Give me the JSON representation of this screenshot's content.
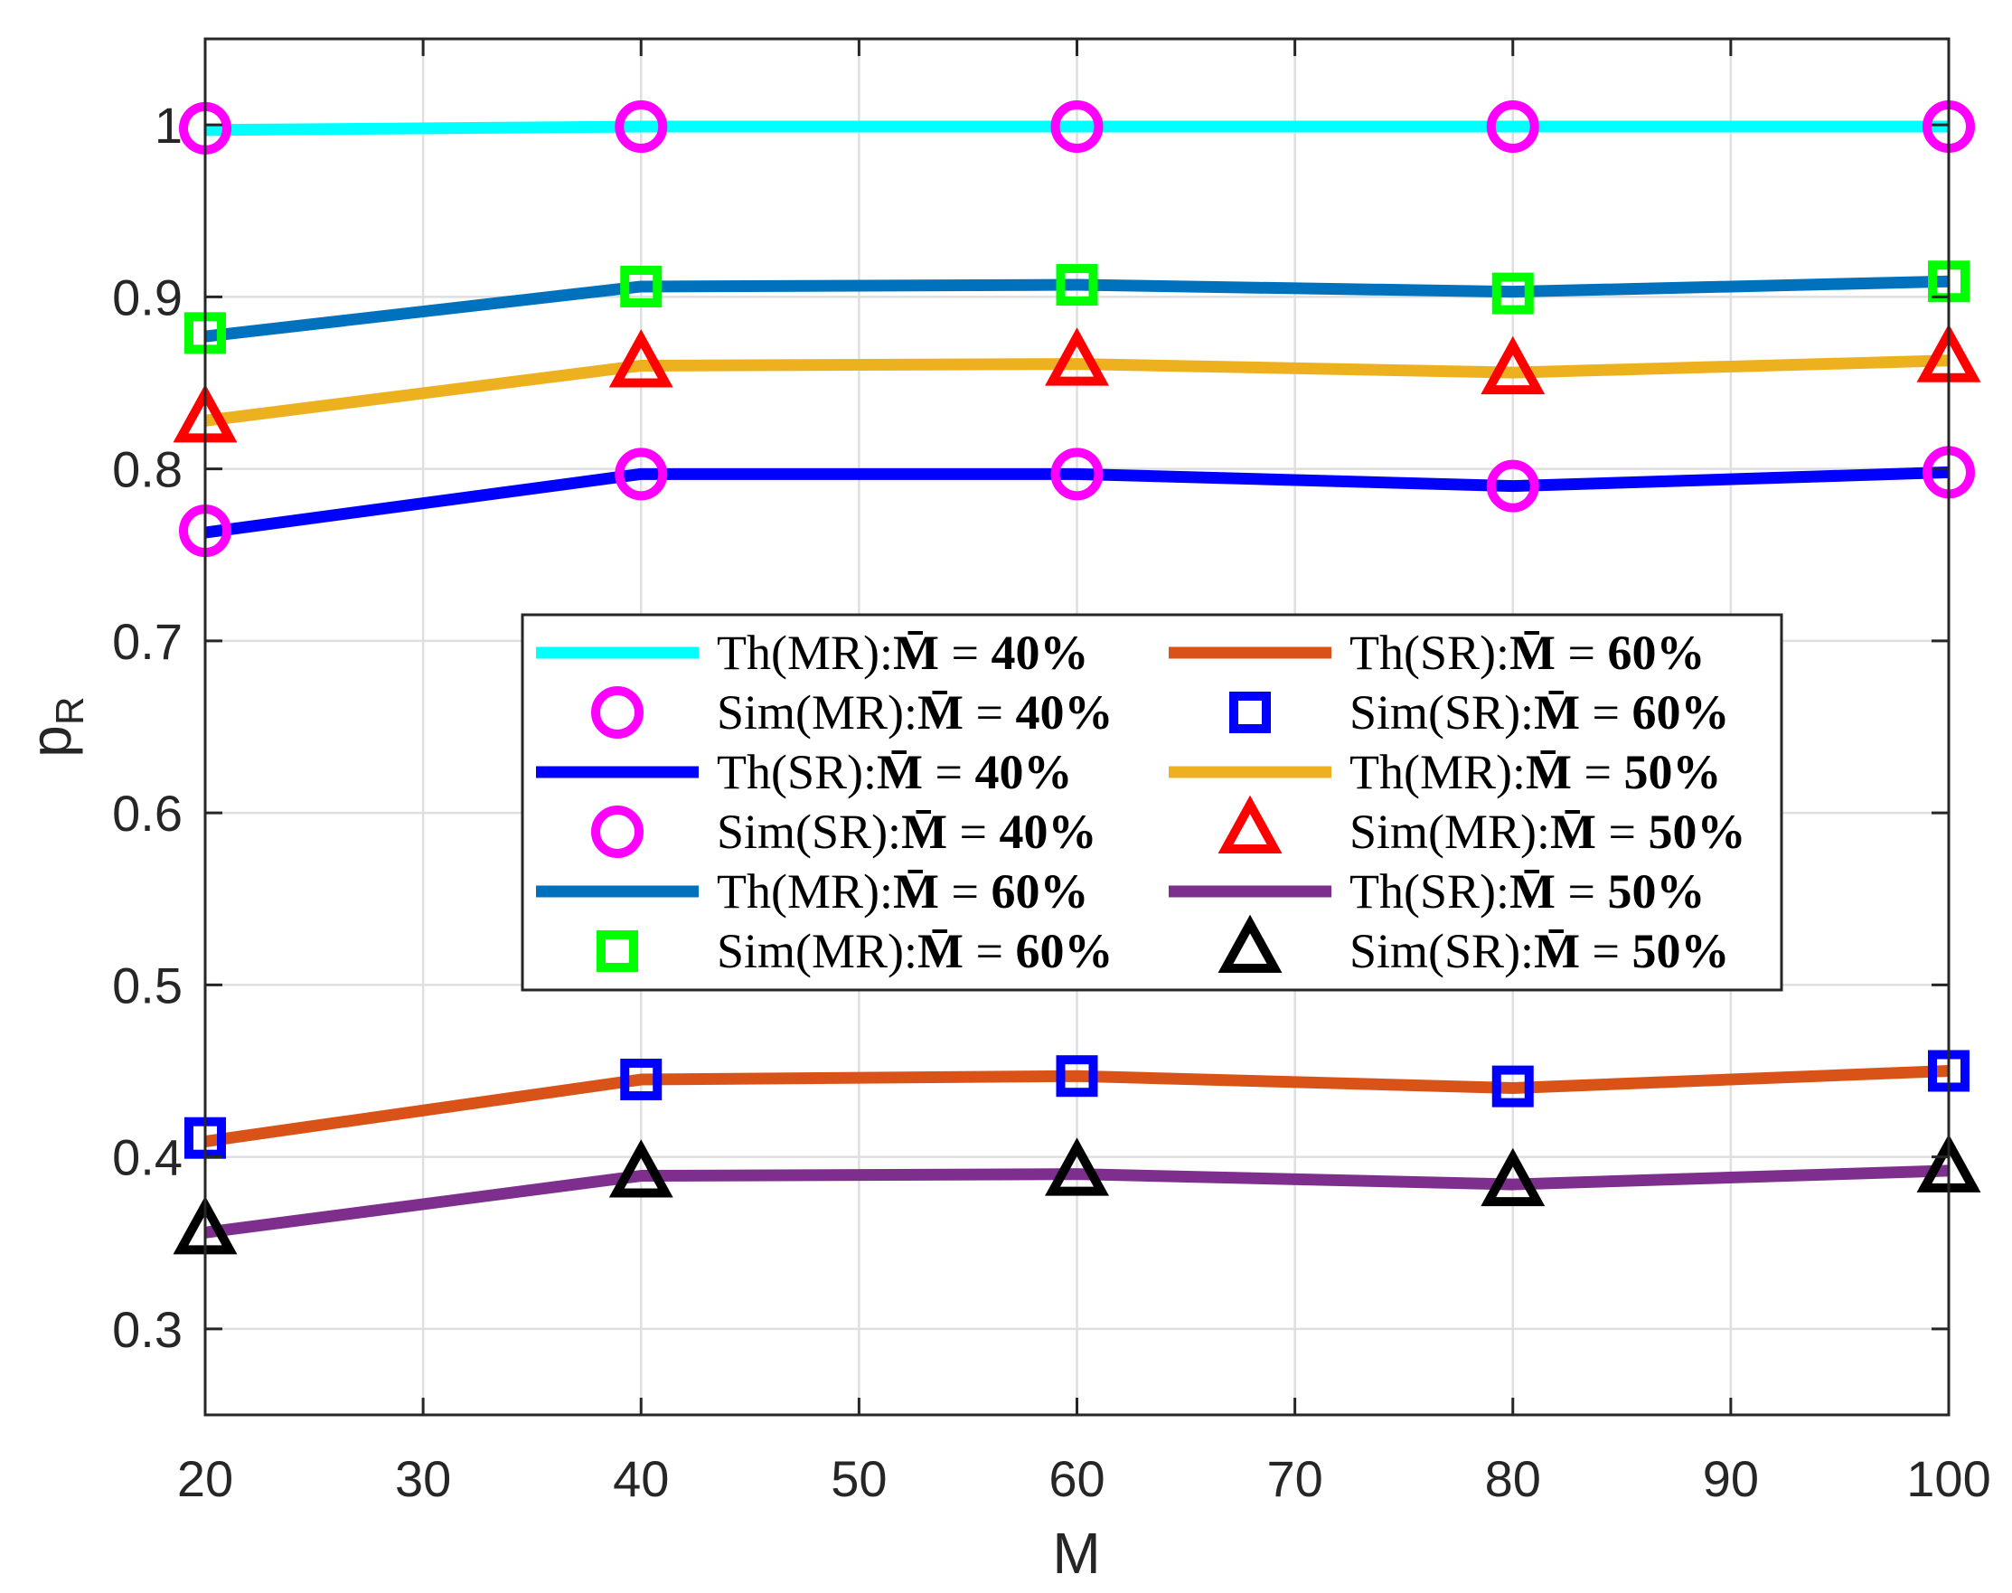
{
  "chart_data": {
    "type": "line",
    "title": "",
    "xlabel": "M",
    "ylabel_base": "p",
    "ylabel_sub": "R",
    "xlim": [
      20,
      100
    ],
    "ylim": [
      0.25,
      1.05
    ],
    "xticks": [
      20,
      30,
      40,
      50,
      60,
      70,
      80,
      90,
      100
    ],
    "xtick_labels": [
      "20",
      "30",
      "40",
      "50",
      "60",
      "70",
      "80",
      "90",
      "100"
    ],
    "yticks": [
      0.3,
      0.4,
      0.5,
      0.6,
      0.7,
      0.8,
      0.9,
      1.0
    ],
    "ytick_labels": [
      "0.3",
      "0.4",
      "0.5",
      "0.6",
      "0.7",
      "0.8",
      "0.9",
      "1"
    ],
    "grid": true,
    "legend_position": "center",
    "x": [
      20,
      40,
      60,
      80,
      100
    ],
    "series": [
      {
        "name": "Th(MR):M̄ = 40%",
        "prefix": "Th(MR):",
        "value": "40%",
        "kind": "line",
        "color": "#00FFFF",
        "values": [
          0.997,
          0.999,
          0.999,
          0.999,
          0.999
        ]
      },
      {
        "name": "Sim(MR):M̄ = 40%",
        "prefix": "Sim(MR):",
        "value": "40%",
        "kind": "marker",
        "marker": "circle",
        "color": "#FF00FF",
        "values": [
          0.998,
          0.999,
          0.999,
          0.999,
          0.999
        ]
      },
      {
        "name": "Th(SR):M̄ = 40%",
        "prefix": "Th(SR):",
        "value": "40%",
        "kind": "line",
        "color": "#0000FF",
        "values": [
          0.763,
          0.797,
          0.797,
          0.79,
          0.798
        ]
      },
      {
        "name": "Sim(SR):M̄ = 40%",
        "prefix": "Sim(SR):",
        "value": "40%",
        "kind": "marker",
        "marker": "circle",
        "color": "#FF00FF",
        "values": [
          0.764,
          0.797,
          0.797,
          0.79,
          0.798
        ]
      },
      {
        "name": "Th(MR):M̄ = 60%",
        "prefix": "Th(MR):",
        "value": "60%",
        "kind": "line",
        "color": "#0072BD",
        "values": [
          0.877,
          0.906,
          0.907,
          0.903,
          0.909
        ]
      },
      {
        "name": "Sim(MR):M̄ = 60%",
        "prefix": "Sim(MR):",
        "value": "60%",
        "kind": "marker",
        "marker": "square",
        "color": "#00FF00",
        "values": [
          0.879,
          0.906,
          0.907,
          0.902,
          0.909
        ]
      },
      {
        "name": "Th(SR):M̄ = 60%",
        "prefix": "Th(SR):",
        "value": "60%",
        "kind": "line",
        "color": "#D95319",
        "values": [
          0.409,
          0.445,
          0.447,
          0.44,
          0.45
        ]
      },
      {
        "name": "Sim(SR):M̄ = 60%",
        "prefix": "Sim(SR):",
        "value": "60%",
        "kind": "marker",
        "marker": "square",
        "color": "#0000FF",
        "values": [
          0.411,
          0.445,
          0.447,
          0.441,
          0.45
        ]
      },
      {
        "name": "Th(MR):M̄ = 50%",
        "prefix": "Th(MR):",
        "value": "50%",
        "kind": "line",
        "color": "#EDB120",
        "values": [
          0.828,
          0.86,
          0.861,
          0.856,
          0.863
        ]
      },
      {
        "name": "Sim(MR):M̄ = 50%",
        "prefix": "Sim(MR):",
        "value": "50%",
        "kind": "marker",
        "marker": "triangle",
        "color": "#FF0000",
        "values": [
          0.828,
          0.86,
          0.861,
          0.856,
          0.863
        ]
      },
      {
        "name": "Th(SR):M̄ = 50%",
        "prefix": "Th(SR):",
        "value": "50%",
        "kind": "line",
        "color": "#7E2F8E",
        "values": [
          0.356,
          0.389,
          0.39,
          0.384,
          0.392
        ]
      },
      {
        "name": "Sim(SR):M̄ = 50%",
        "prefix": "Sim(SR):",
        "value": "50%",
        "kind": "marker",
        "marker": "triangle",
        "color": "#000000",
        "values": [
          0.356,
          0.389,
          0.39,
          0.384,
          0.392
        ]
      }
    ],
    "legend_order": [
      0,
      6,
      1,
      7,
      2,
      8,
      3,
      9,
      4,
      10,
      5,
      11
    ]
  }
}
